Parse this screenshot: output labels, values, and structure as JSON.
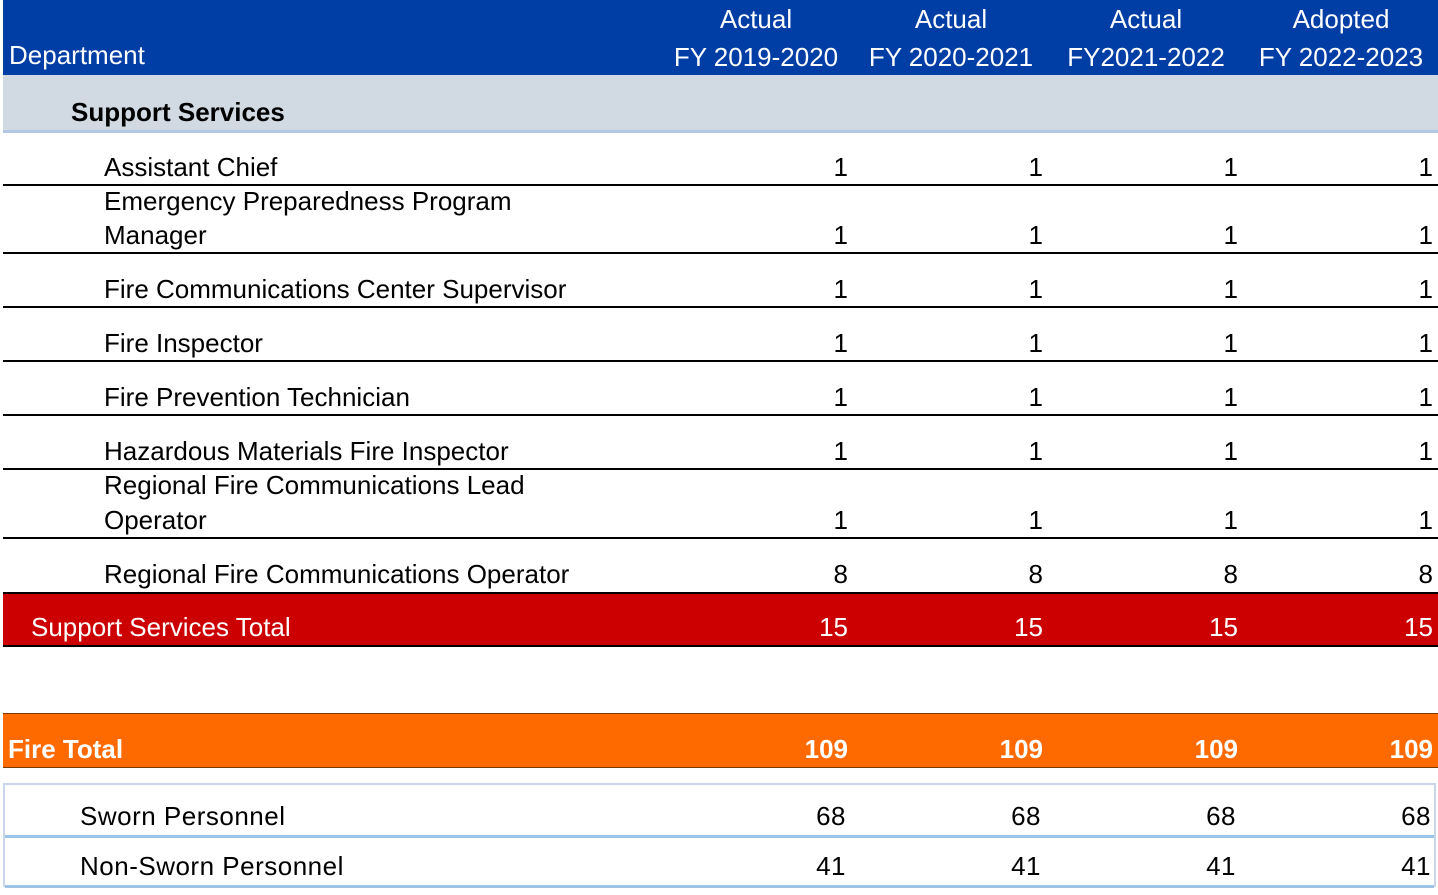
{
  "header": {
    "department_label": "Department",
    "columns": [
      {
        "line1": "Actual",
        "line2": "FY 2019-2020"
      },
      {
        "line1": "Actual",
        "line2": "FY 2020-2021"
      },
      {
        "line1": "Actual",
        "line2": "FY2021-2022"
      },
      {
        "line1": "Adopted",
        "line2": "FY 2022-2023"
      }
    ]
  },
  "section": {
    "title": "Support Services"
  },
  "positions": [
    {
      "line1": "Assistant Chief",
      "line2": "",
      "values": [
        "1",
        "1",
        "1",
        "1"
      ]
    },
    {
      "line1": "Emergency Preparedness Program",
      "line2": "Manager",
      "values": [
        "1",
        "1",
        "1",
        "1"
      ]
    },
    {
      "line1": "Fire Communications Center Supervisor",
      "line2": "",
      "values": [
        "1",
        "1",
        "1",
        "1"
      ]
    },
    {
      "line1": "Fire Inspector",
      "line2": "",
      "values": [
        "1",
        "1",
        "1",
        "1"
      ]
    },
    {
      "line1": "Fire Prevention Technician",
      "line2": "",
      "values": [
        "1",
        "1",
        "1",
        "1"
      ]
    },
    {
      "line1": "Hazardous Materials Fire Inspector",
      "line2": "",
      "values": [
        "1",
        "1",
        "1",
        "1"
      ]
    },
    {
      "line1": "Regional Fire Communications Lead",
      "line2": "Operator",
      "values": [
        "1",
        "1",
        "1",
        "1"
      ]
    },
    {
      "line1": "Regional Fire Communications Operator",
      "line2": "",
      "values": [
        "8",
        "8",
        "8",
        "8"
      ]
    }
  ],
  "section_total": {
    "label": "Support Services Total",
    "values": [
      "15",
      "15",
      "15",
      "15"
    ]
  },
  "fire_total": {
    "label": "Fire Total",
    "values": [
      "109",
      "109",
      "109",
      "109"
    ]
  },
  "summary": [
    {
      "label": "Sworn Personnel",
      "values": [
        "68",
        "68",
        "68",
        "68"
      ]
    },
    {
      "label": "Non-Sworn Personnel",
      "values": [
        "41",
        "41",
        "41",
        "41"
      ]
    }
  ],
  "colors": {
    "header_bg": "#003da5",
    "section_bg": "#d1d9e2",
    "section_total_bg": "#cc0000",
    "fire_total_bg": "#ff6a00"
  }
}
